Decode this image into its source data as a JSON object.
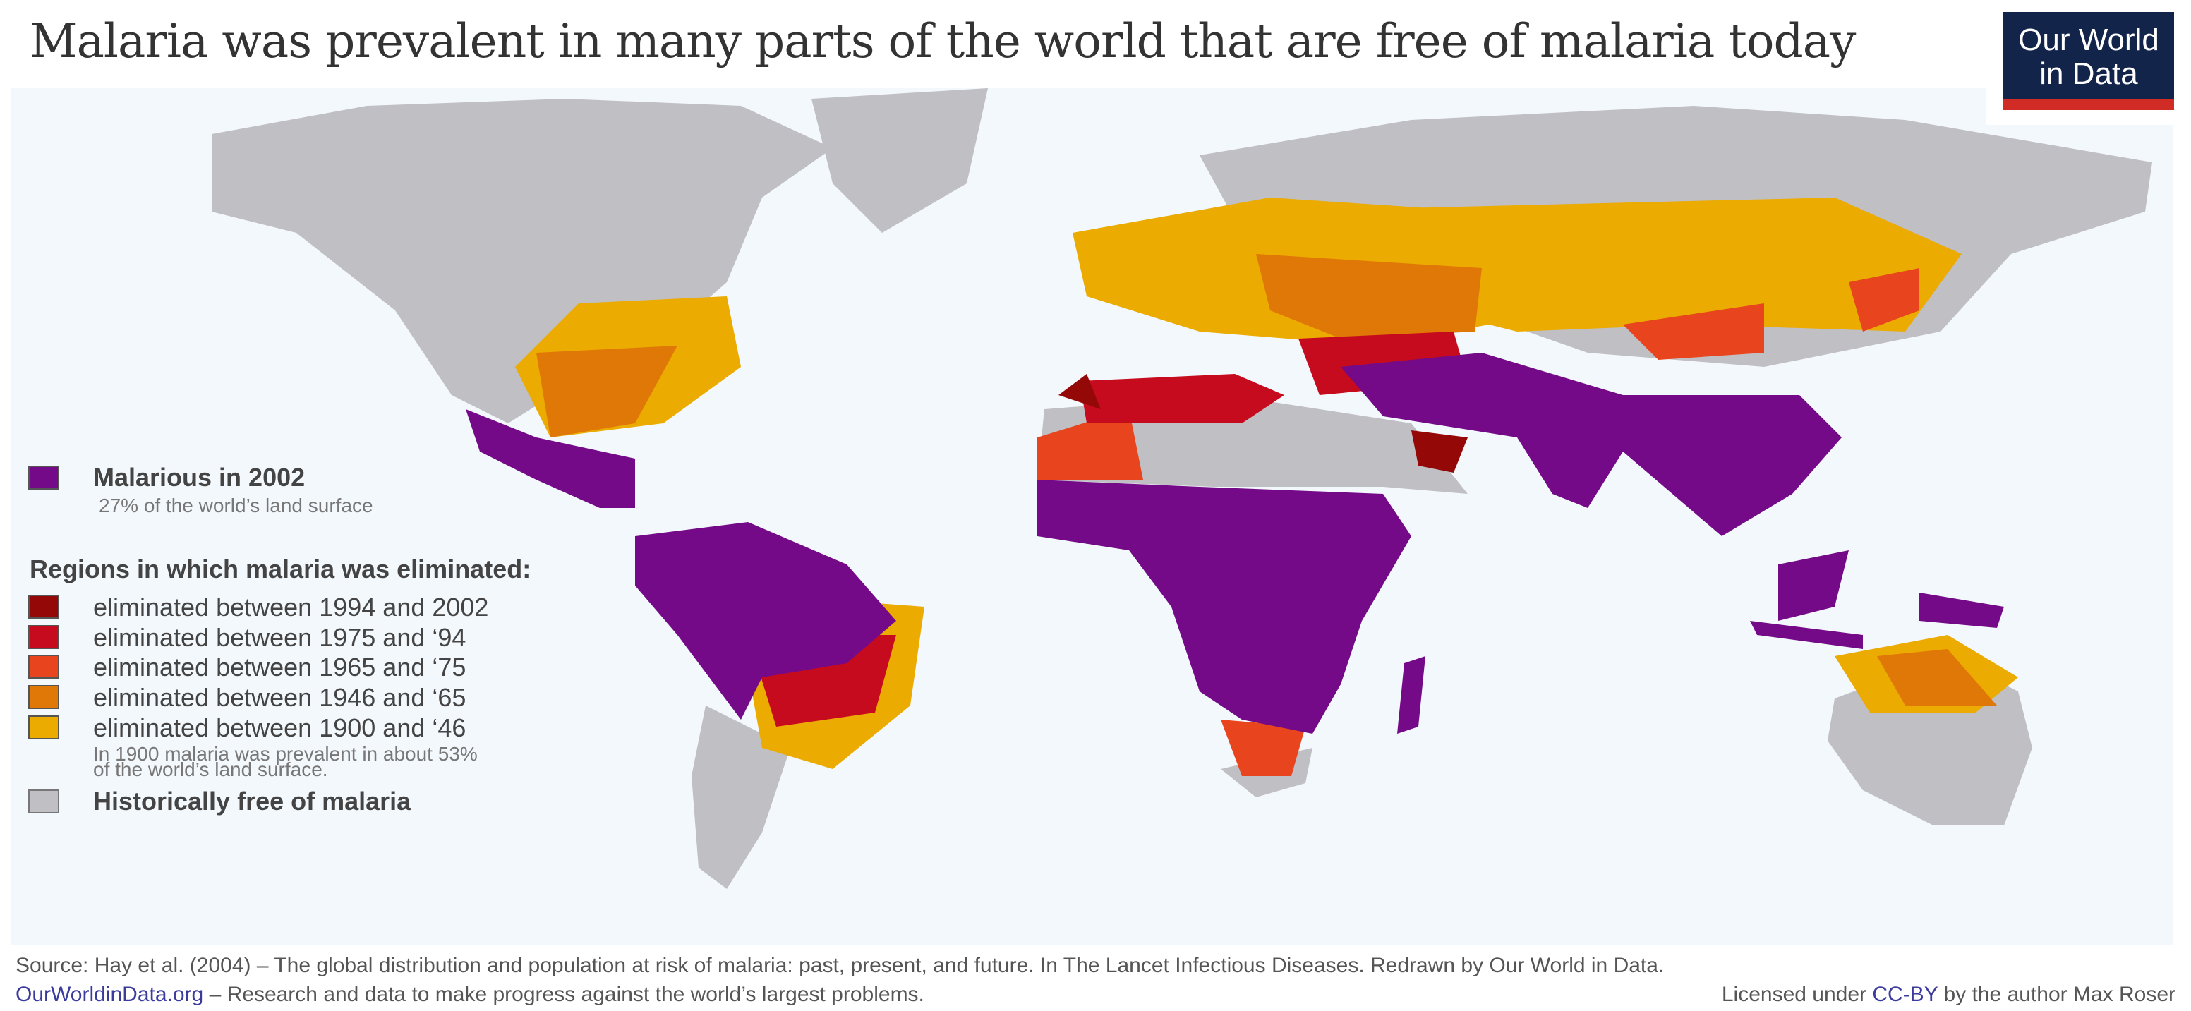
{
  "title": "Malaria was prevalent in many parts of the world that are free of malaria today",
  "logo": {
    "line1": "Our World",
    "line2": "in Data"
  },
  "legend": {
    "malarious": {
      "label": "Malarious in 2002",
      "note": "27% of the world’s land surface",
      "color": "#740a87"
    },
    "eliminated_heading": "Regions in which malaria was eliminated:",
    "eliminated": [
      {
        "label": "eliminated between 1994 and 2002",
        "color": "#950808"
      },
      {
        "label": "eliminated between 1975 and ‘94",
        "color": "#c70b1e"
      },
      {
        "label": "eliminated between 1965 and ‘75",
        "color": "#e8441d"
      },
      {
        "label": "eliminated between 1946 and ‘65",
        "color": "#e07808"
      },
      {
        "label": "eliminated between 1900 and ‘46",
        "color": "#ebab00"
      }
    ],
    "note_1900": "In 1900 malaria was prevalent in about 53%",
    "note_1900_2": "of the world’s land surface.",
    "free": {
      "label": "Historically free of malaria",
      "color": "#c0bfc4"
    }
  },
  "footer": {
    "source": "Source: Hay et al. (2004) – The global distribution and population at risk of malaria: past, present, and future. In The Lancet Infectious Diseases. Redrawn by Our World in Data.",
    "site": "OurWorldinData.org",
    "tagline": " – Research and data to make progress against the world’s largest problems.",
    "license_pre": "Licensed under ",
    "license_link": "CC-BY",
    "license_post": " by the author Max Roser"
  }
}
